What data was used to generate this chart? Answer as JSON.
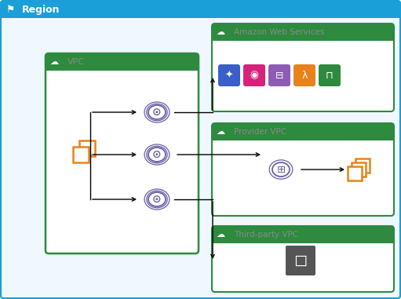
{
  "bg_color": "#f0f8ff",
  "region_header_color": "#1a9fd8",
  "region_border_color": "#1a9fd8",
  "region_text": "Region",
  "green_header": "#2d8a3e",
  "green_border": "#2d8a3e",
  "vpc_text": "VPC",
  "aws_box_text": "Amazon Web Services",
  "provider_box_text": "Provider VPC",
  "thirdparty_box_text": "Third-party VPC",
  "orange_color": "#e8821a",
  "purple_color": "#6b5fa5",
  "gray_text": "#8a8a8a",
  "aws_icon_colors": [
    "#3a5fc8",
    "#d6227a",
    "#8e5bb5",
    "#e8821a",
    "#2d8a3e"
  ],
  "dark_bg": "#555555"
}
